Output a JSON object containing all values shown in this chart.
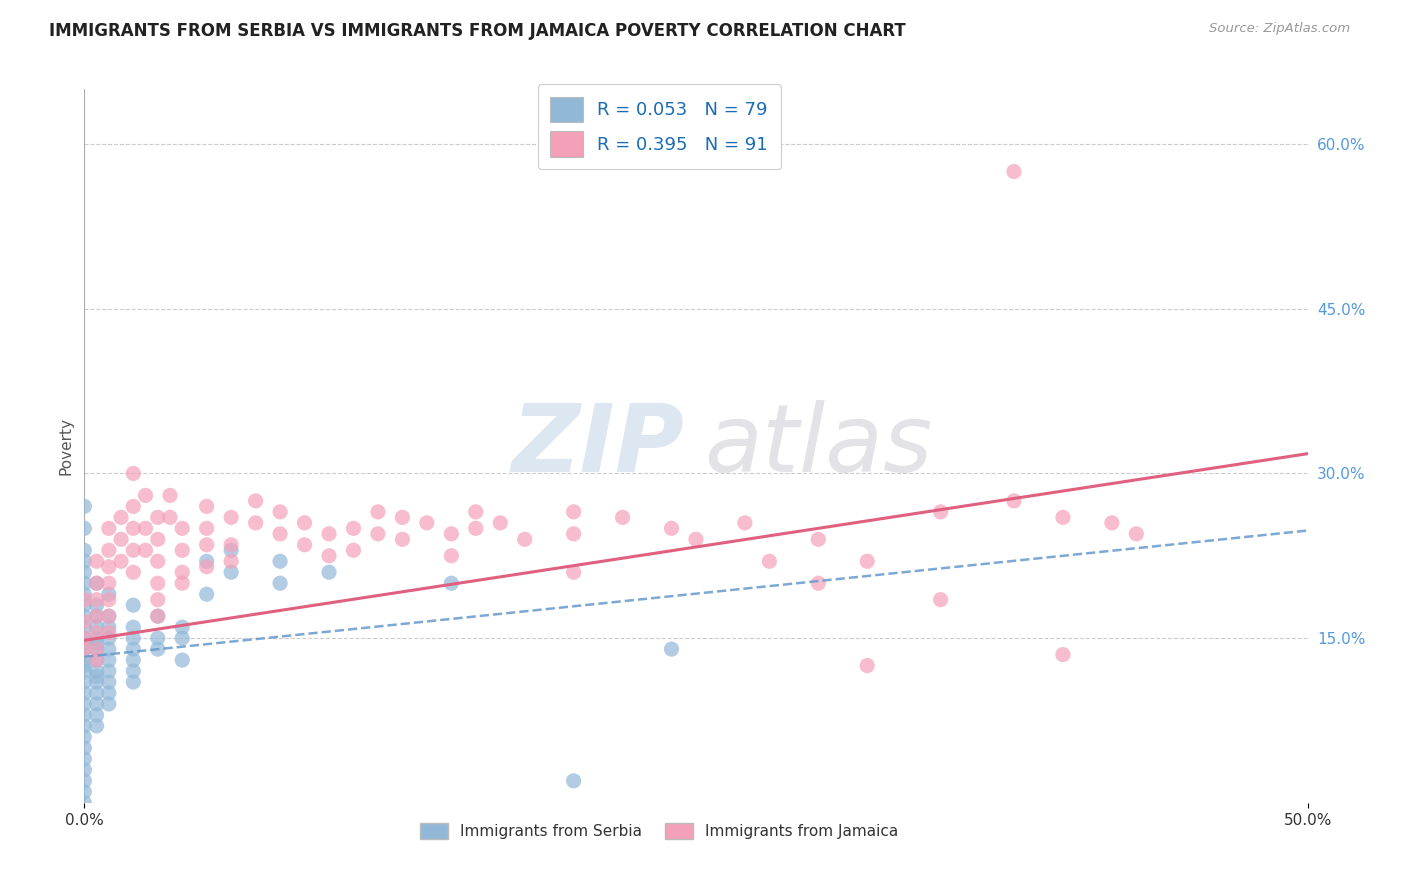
{
  "title": "IMMIGRANTS FROM SERBIA VS IMMIGRANTS FROM JAMAICA POVERTY CORRELATION CHART",
  "source": "Source: ZipAtlas.com",
  "ylabel": "Poverty",
  "xlim": [
    0.0,
    0.5
  ],
  "ylim": [
    0.0,
    0.65
  ],
  "xtick_vals": [
    0.0,
    0.5
  ],
  "xtick_labels": [
    "0.0%",
    "50.0%"
  ],
  "ytick_positions_right": [
    0.15,
    0.3,
    0.45,
    0.6
  ],
  "serbia_color": "#92b8d8",
  "jamaica_color": "#f4a0b8",
  "serbia_R": 0.053,
  "serbia_N": 79,
  "jamaica_R": 0.395,
  "jamaica_N": 91,
  "serbia_line_color": "#6699cc",
  "jamaica_line_color": "#e06080",
  "background_color": "#ffffff",
  "grid_color": "#cccccc",
  "legend_serbia_label": "Immigrants from Serbia",
  "legend_jamaica_label": "Immigrants from Jamaica",
  "serbia_line_x0": 0.0,
  "serbia_line_y0": 0.133,
  "serbia_line_x1": 0.5,
  "serbia_line_y1": 0.248,
  "jamaica_line_x0": 0.0,
  "jamaica_line_y0": 0.148,
  "jamaica_line_x1": 0.5,
  "jamaica_line_y1": 0.318,
  "serbia_scatter": [
    [
      0.0,
      0.27
    ],
    [
      0.0,
      0.25
    ],
    [
      0.0,
      0.23
    ],
    [
      0.0,
      0.22
    ],
    [
      0.0,
      0.21
    ],
    [
      0.0,
      0.2
    ],
    [
      0.0,
      0.19
    ],
    [
      0.0,
      0.18
    ],
    [
      0.0,
      0.17
    ],
    [
      0.0,
      0.16
    ],
    [
      0.0,
      0.15
    ],
    [
      0.0,
      0.145
    ],
    [
      0.0,
      0.14
    ],
    [
      0.0,
      0.13
    ],
    [
      0.0,
      0.125
    ],
    [
      0.0,
      0.12
    ],
    [
      0.0,
      0.11
    ],
    [
      0.0,
      0.1
    ],
    [
      0.0,
      0.09
    ],
    [
      0.0,
      0.08
    ],
    [
      0.0,
      0.07
    ],
    [
      0.0,
      0.06
    ],
    [
      0.0,
      0.05
    ],
    [
      0.0,
      0.04
    ],
    [
      0.0,
      0.03
    ],
    [
      0.0,
      0.02
    ],
    [
      0.0,
      0.01
    ],
    [
      0.0,
      0.0
    ],
    [
      0.005,
      0.2
    ],
    [
      0.005,
      0.18
    ],
    [
      0.005,
      0.17
    ],
    [
      0.005,
      0.16
    ],
    [
      0.005,
      0.15
    ],
    [
      0.005,
      0.145
    ],
    [
      0.005,
      0.14
    ],
    [
      0.005,
      0.13
    ],
    [
      0.005,
      0.12
    ],
    [
      0.005,
      0.115
    ],
    [
      0.005,
      0.11
    ],
    [
      0.005,
      0.1
    ],
    [
      0.005,
      0.09
    ],
    [
      0.005,
      0.08
    ],
    [
      0.005,
      0.07
    ],
    [
      0.01,
      0.19
    ],
    [
      0.01,
      0.17
    ],
    [
      0.01,
      0.16
    ],
    [
      0.01,
      0.15
    ],
    [
      0.01,
      0.14
    ],
    [
      0.01,
      0.13
    ],
    [
      0.01,
      0.12
    ],
    [
      0.01,
      0.11
    ],
    [
      0.01,
      0.1
    ],
    [
      0.01,
      0.09
    ],
    [
      0.02,
      0.18
    ],
    [
      0.02,
      0.16
    ],
    [
      0.02,
      0.15
    ],
    [
      0.02,
      0.14
    ],
    [
      0.02,
      0.13
    ],
    [
      0.02,
      0.12
    ],
    [
      0.02,
      0.11
    ],
    [
      0.03,
      0.17
    ],
    [
      0.03,
      0.15
    ],
    [
      0.03,
      0.14
    ],
    [
      0.04,
      0.16
    ],
    [
      0.04,
      0.15
    ],
    [
      0.04,
      0.13
    ],
    [
      0.05,
      0.22
    ],
    [
      0.05,
      0.19
    ],
    [
      0.06,
      0.23
    ],
    [
      0.06,
      0.21
    ],
    [
      0.08,
      0.22
    ],
    [
      0.08,
      0.2
    ],
    [
      0.1,
      0.21
    ],
    [
      0.15,
      0.2
    ],
    [
      0.2,
      0.02
    ],
    [
      0.24,
      0.14
    ]
  ],
  "jamaica_scatter": [
    [
      0.0,
      0.185
    ],
    [
      0.0,
      0.165
    ],
    [
      0.0,
      0.15
    ],
    [
      0.0,
      0.14
    ],
    [
      0.005,
      0.22
    ],
    [
      0.005,
      0.2
    ],
    [
      0.005,
      0.185
    ],
    [
      0.005,
      0.17
    ],
    [
      0.005,
      0.155
    ],
    [
      0.005,
      0.14
    ],
    [
      0.005,
      0.13
    ],
    [
      0.01,
      0.25
    ],
    [
      0.01,
      0.23
    ],
    [
      0.01,
      0.215
    ],
    [
      0.01,
      0.2
    ],
    [
      0.01,
      0.185
    ],
    [
      0.01,
      0.17
    ],
    [
      0.01,
      0.155
    ],
    [
      0.015,
      0.26
    ],
    [
      0.015,
      0.24
    ],
    [
      0.015,
      0.22
    ],
    [
      0.02,
      0.3
    ],
    [
      0.02,
      0.27
    ],
    [
      0.02,
      0.25
    ],
    [
      0.02,
      0.23
    ],
    [
      0.02,
      0.21
    ],
    [
      0.025,
      0.28
    ],
    [
      0.025,
      0.25
    ],
    [
      0.025,
      0.23
    ],
    [
      0.03,
      0.26
    ],
    [
      0.03,
      0.24
    ],
    [
      0.03,
      0.22
    ],
    [
      0.03,
      0.2
    ],
    [
      0.03,
      0.185
    ],
    [
      0.03,
      0.17
    ],
    [
      0.035,
      0.28
    ],
    [
      0.035,
      0.26
    ],
    [
      0.04,
      0.25
    ],
    [
      0.04,
      0.23
    ],
    [
      0.04,
      0.21
    ],
    [
      0.04,
      0.2
    ],
    [
      0.05,
      0.27
    ],
    [
      0.05,
      0.25
    ],
    [
      0.05,
      0.235
    ],
    [
      0.05,
      0.215
    ],
    [
      0.06,
      0.26
    ],
    [
      0.06,
      0.235
    ],
    [
      0.06,
      0.22
    ],
    [
      0.07,
      0.275
    ],
    [
      0.07,
      0.255
    ],
    [
      0.08,
      0.265
    ],
    [
      0.08,
      0.245
    ],
    [
      0.09,
      0.255
    ],
    [
      0.09,
      0.235
    ],
    [
      0.1,
      0.245
    ],
    [
      0.1,
      0.225
    ],
    [
      0.11,
      0.25
    ],
    [
      0.11,
      0.23
    ],
    [
      0.12,
      0.265
    ],
    [
      0.12,
      0.245
    ],
    [
      0.13,
      0.26
    ],
    [
      0.13,
      0.24
    ],
    [
      0.14,
      0.255
    ],
    [
      0.15,
      0.245
    ],
    [
      0.15,
      0.225
    ],
    [
      0.16,
      0.265
    ],
    [
      0.16,
      0.25
    ],
    [
      0.17,
      0.255
    ],
    [
      0.18,
      0.24
    ],
    [
      0.2,
      0.265
    ],
    [
      0.2,
      0.245
    ],
    [
      0.22,
      0.26
    ],
    [
      0.24,
      0.25
    ],
    [
      0.25,
      0.24
    ],
    [
      0.27,
      0.255
    ],
    [
      0.3,
      0.24
    ],
    [
      0.32,
      0.22
    ],
    [
      0.35,
      0.265
    ],
    [
      0.38,
      0.575
    ],
    [
      0.38,
      0.275
    ],
    [
      0.4,
      0.26
    ],
    [
      0.42,
      0.255
    ],
    [
      0.43,
      0.245
    ],
    [
      0.32,
      0.125
    ],
    [
      0.4,
      0.135
    ],
    [
      0.28,
      0.22
    ],
    [
      0.3,
      0.2
    ],
    [
      0.35,
      0.185
    ],
    [
      0.2,
      0.21
    ]
  ]
}
